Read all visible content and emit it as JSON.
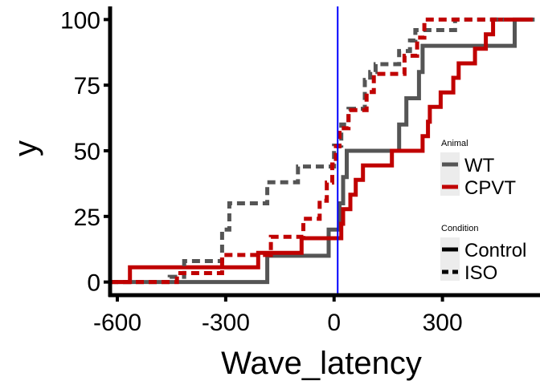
{
  "chart_data": {
    "type": "line",
    "step": true,
    "xlabel": "Wave_latency",
    "ylabel": "y",
    "xlim": [
      -620,
      570
    ],
    "ylim": [
      -5,
      105
    ],
    "xticks": [
      -600,
      -300,
      0,
      300
    ],
    "xtick_labels": [
      "-600",
      "-300",
      "0",
      "300"
    ],
    "yticks": [
      0,
      25,
      50,
      75,
      100
    ],
    "ytick_labels": [
      "0",
      "25",
      "50",
      "75",
      "100"
    ],
    "grid": false,
    "vline": {
      "x": 10,
      "color": "#0000ff"
    },
    "legend": {
      "placement": "right",
      "groups": [
        {
          "title": "Animal",
          "entries": [
            {
              "label": "WT",
              "color": "#555555"
            },
            {
              "label": "CPVT",
              "color": "#c00000"
            }
          ]
        },
        {
          "title": "Condition",
          "entries": [
            {
              "label": "Control",
              "linestyle": "solid"
            },
            {
              "label": "ISO",
              "linestyle": "dashed"
            }
          ]
        }
      ]
    },
    "series": [
      {
        "animal": "WT",
        "condition": "Control",
        "color": "#555555",
        "linestyle": "solid",
        "points": [
          [
            -600,
            0
          ],
          [
            -185,
            0
          ],
          [
            -185,
            10
          ],
          [
            -15,
            10
          ],
          [
            -15,
            20
          ],
          [
            15,
            20
          ],
          [
            15,
            30
          ],
          [
            25,
            30
          ],
          [
            25,
            40
          ],
          [
            35,
            40
          ],
          [
            35,
            50
          ],
          [
            180,
            50
          ],
          [
            180,
            60
          ],
          [
            200,
            60
          ],
          [
            200,
            70
          ],
          [
            235,
            70
          ],
          [
            235,
            80
          ],
          [
            245,
            80
          ],
          [
            245,
            90
          ],
          [
            500,
            90
          ],
          [
            500,
            100
          ],
          [
            555,
            100
          ]
        ]
      },
      {
        "animal": "CPVT",
        "condition": "Control",
        "color": "#c00000",
        "linestyle": "solid",
        "points": [
          [
            -620,
            0
          ],
          [
            -565,
            0
          ],
          [
            -565,
            5.6
          ],
          [
            -210,
            5.6
          ],
          [
            -210,
            11.1
          ],
          [
            -90,
            11.1
          ],
          [
            -90,
            16.7
          ],
          [
            20,
            16.7
          ],
          [
            20,
            22.2
          ],
          [
            25,
            22.2
          ],
          [
            25,
            27.8
          ],
          [
            45,
            27.8
          ],
          [
            45,
            33.3
          ],
          [
            60,
            33.3
          ],
          [
            60,
            38.9
          ],
          [
            80,
            38.9
          ],
          [
            80,
            44.4
          ],
          [
            160,
            44.4
          ],
          [
            160,
            50
          ],
          [
            245,
            50
          ],
          [
            245,
            55.6
          ],
          [
            260,
            55.6
          ],
          [
            260,
            61.1
          ],
          [
            265,
            61.1
          ],
          [
            265,
            66.7
          ],
          [
            295,
            66.7
          ],
          [
            295,
            72.2
          ],
          [
            330,
            72.2
          ],
          [
            330,
            77.8
          ],
          [
            345,
            77.8
          ],
          [
            345,
            83.3
          ],
          [
            390,
            83.3
          ],
          [
            390,
            88.9
          ],
          [
            420,
            88.9
          ],
          [
            420,
            94.4
          ],
          [
            440,
            94.4
          ],
          [
            440,
            100
          ],
          [
            550,
            100
          ]
        ]
      },
      {
        "animal": "WT",
        "condition": "ISO",
        "color": "#555555",
        "linestyle": "dashed",
        "points": [
          [
            -620,
            0
          ],
          [
            -455,
            0
          ],
          [
            -455,
            2
          ],
          [
            -415,
            2
          ],
          [
            -415,
            8
          ],
          [
            -310,
            8
          ],
          [
            -310,
            20
          ],
          [
            -290,
            20
          ],
          [
            -290,
            30
          ],
          [
            -185,
            30
          ],
          [
            -185,
            38
          ],
          [
            -100,
            38
          ],
          [
            -100,
            44
          ],
          [
            0,
            44
          ],
          [
            0,
            52
          ],
          [
            20,
            52
          ],
          [
            20,
            60
          ],
          [
            40,
            60
          ],
          [
            40,
            66
          ],
          [
            85,
            66
          ],
          [
            85,
            77
          ],
          [
            100,
            77
          ],
          [
            100,
            80
          ],
          [
            115,
            80
          ],
          [
            115,
            83
          ],
          [
            180,
            83
          ],
          [
            180,
            88
          ],
          [
            210,
            88
          ],
          [
            210,
            92
          ],
          [
            225,
            92
          ],
          [
            225,
            96
          ],
          [
            335,
            96
          ],
          [
            335,
            100
          ],
          [
            470,
            100
          ]
        ]
      },
      {
        "animal": "CPVT",
        "condition": "ISO",
        "color": "#c00000",
        "linestyle": "dashed",
        "points": [
          [
            -620,
            0
          ],
          [
            -435,
            0
          ],
          [
            -435,
            3.4
          ],
          [
            -310,
            3.4
          ],
          [
            -310,
            10.3
          ],
          [
            -175,
            10.3
          ],
          [
            -175,
            17.2
          ],
          [
            -85,
            17.2
          ],
          [
            -85,
            24.1
          ],
          [
            -40,
            24.1
          ],
          [
            -40,
            31
          ],
          [
            -20,
            31
          ],
          [
            -20,
            37.9
          ],
          [
            -5,
            37.9
          ],
          [
            -5,
            44.8
          ],
          [
            5,
            44.8
          ],
          [
            5,
            51.7
          ],
          [
            15,
            51.7
          ],
          [
            15,
            58.6
          ],
          [
            40,
            58.6
          ],
          [
            40,
            65.5
          ],
          [
            90,
            65.5
          ],
          [
            90,
            72.4
          ],
          [
            110,
            72.4
          ],
          [
            110,
            79.3
          ],
          [
            195,
            79.3
          ],
          [
            195,
            86.2
          ],
          [
            230,
            86.2
          ],
          [
            230,
            93.1
          ],
          [
            250,
            93.1
          ],
          [
            250,
            100
          ],
          [
            450,
            100
          ]
        ]
      }
    ]
  }
}
